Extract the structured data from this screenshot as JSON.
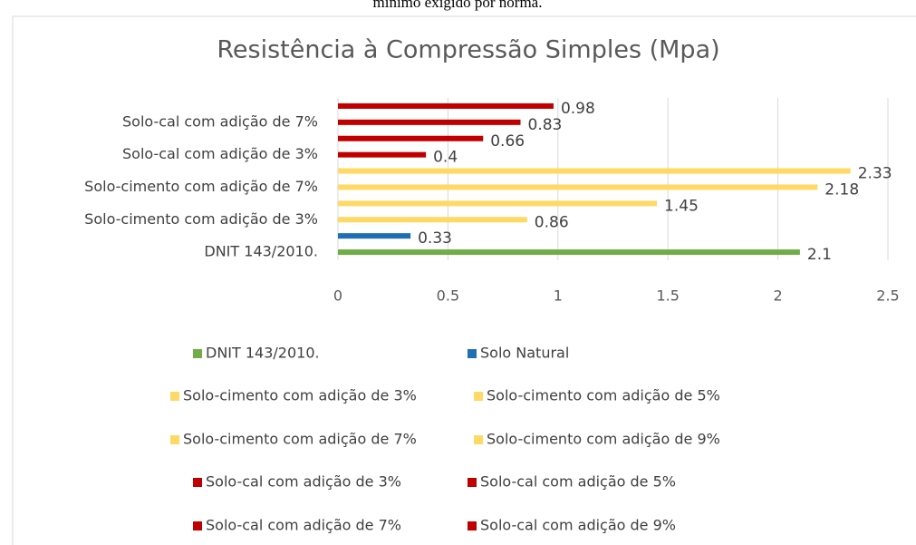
{
  "caption": "mínimo exigido por norma.",
  "chart_data": {
    "type": "barh",
    "title": "Resistência à Compressão Simples (Mpa)",
    "categories": [
      "DNIT 143/2010.",
      null,
      "Solo-cimento com adição de 3%",
      null,
      "Solo-cimento com adição de 7%",
      null,
      "Solo-cal com adição de 3%",
      null,
      "Solo-cal com adição de 7%",
      null
    ],
    "series": [
      {
        "name": "DNIT 143/2010.",
        "color": "#70ad47",
        "values": [
          2.1,
          null,
          null,
          null,
          null,
          null,
          null,
          null,
          null,
          null
        ]
      },
      {
        "name": "Solo Natural",
        "color": "#1f6fb4",
        "values": [
          null,
          0.33,
          null,
          null,
          null,
          null,
          null,
          null,
          null,
          null
        ]
      },
      {
        "name": "Solo-cimento com adição de 3%",
        "color": "#ffd966",
        "values": [
          null,
          null,
          0.86,
          null,
          null,
          null,
          null,
          null,
          null,
          null
        ]
      },
      {
        "name": "Solo-cimento com adição de 5%",
        "color": "#ffd966",
        "values": [
          null,
          null,
          null,
          1.45,
          null,
          null,
          null,
          null,
          null,
          null
        ]
      },
      {
        "name": "Solo-cimento com adição de 7%",
        "color": "#ffd966",
        "values": [
          null,
          null,
          null,
          null,
          2.18,
          null,
          null,
          null,
          null,
          null
        ]
      },
      {
        "name": "Solo-cimento com adição de 9%",
        "color": "#ffd966",
        "values": [
          null,
          null,
          null,
          null,
          null,
          2.33,
          null,
          null,
          null,
          null
        ]
      },
      {
        "name": "Solo-cal com adição de 3%",
        "color": "#c00000",
        "values": [
          null,
          null,
          null,
          null,
          null,
          null,
          0.4,
          null,
          null,
          null
        ]
      },
      {
        "name": "Solo-cal com adição de 5%",
        "color": "#c00000",
        "values": [
          null,
          null,
          null,
          null,
          null,
          null,
          null,
          0.66,
          null,
          null
        ]
      },
      {
        "name": "Solo-cal com adição de 7%",
        "color": "#c00000",
        "values": [
          null,
          null,
          null,
          null,
          null,
          null,
          null,
          null,
          0.83,
          null
        ]
      },
      {
        "name": "Solo-cal com adição de 9%",
        "color": "#c00000",
        "values": [
          null,
          null,
          null,
          null,
          null,
          null,
          null,
          null,
          null,
          0.98
        ]
      }
    ],
    "xlim": [
      0,
      2.5
    ],
    "xticks": [
      0,
      0.5,
      1,
      1.5,
      2,
      2.5
    ],
    "grid": true
  }
}
